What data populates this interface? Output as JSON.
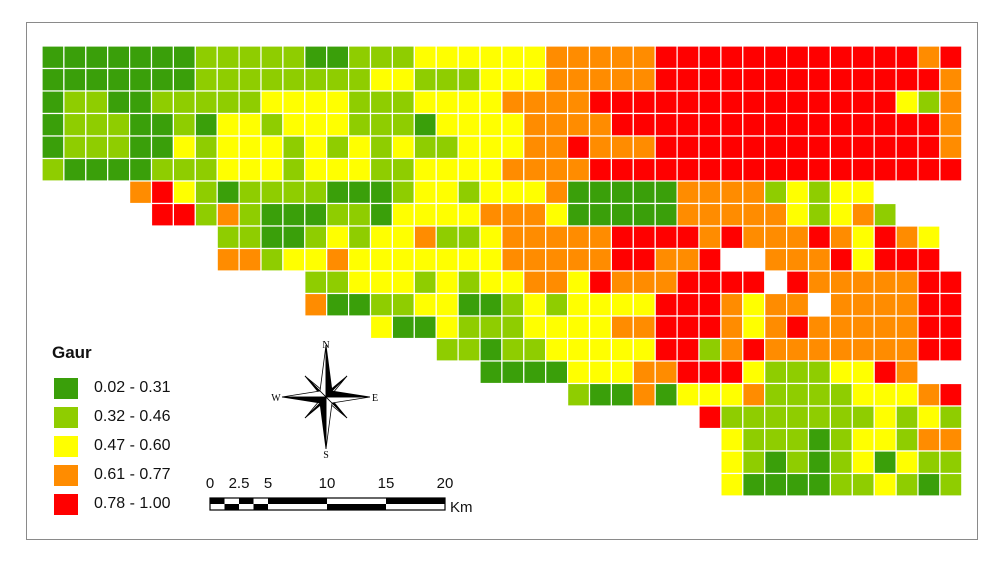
{
  "legend": {
    "title": "Gaur",
    "classes": [
      {
        "label": "0.02 - 0.31",
        "color": "#3a9f0a"
      },
      {
        "label": "0.32 - 0.46",
        "color": "#8fcd00"
      },
      {
        "label": "0.47 - 0.60",
        "color": "#ffff00"
      },
      {
        "label": "0.61 - 0.77",
        "color": "#ff8c00"
      },
      {
        "label": "0.78 - 1.00",
        "color": "#ff0000"
      }
    ]
  },
  "compass": {
    "n": "N",
    "s": "S",
    "e": "E",
    "w": "W"
  },
  "scale_bar": {
    "ticks": [
      "0",
      "2.5",
      "5",
      "10",
      "15",
      "20"
    ],
    "tick_values": [
      0,
      2.5,
      5,
      10,
      15,
      20
    ],
    "unit": "Km"
  },
  "grid": {
    "columns": 42,
    "class_codes": [
      "0 = no data",
      "1 = 0.02 - 0.31",
      "2 = 0.32 - 0.46",
      "3 = 0.47 - 0.60",
      "4 = 0.61 - 0.77",
      "5 = 0.78 - 1.00"
    ],
    "rows": [
      "111111122222112223333334444455555555555545",
      "111111122222222332223334444455555555555554",
      "122112222233332223333444455555555555555324",
      "122211213323332221333344445555555555555554",
      "122211323332323232233344544455555555555554",
      "211112223332333223333444455555555555555555",
      "000045321222211123323334111114444232330000",
      "000005524211122133334443111114444432342000",
      "000000002211232334223444445555454445435430",
      "000000004423343333333444445544500444535550",
      "000000000000223332323344354445555054444455",
      "000000000000411223311232333355543440444455",
      "000000000000000311322233334455543454444455",
      "000000000000000000221223333355245444444455",
      "000000000000000000001111333445553222335400",
      "000000000000000000000000211413334222233345",
      "000000000000000000000000000000522222223232",
      "000000000000000000000000000000032221233244",
      "000000000000000000000000000000032121231322",
      "000000000000000000000000000000031111223212"
    ]
  }
}
